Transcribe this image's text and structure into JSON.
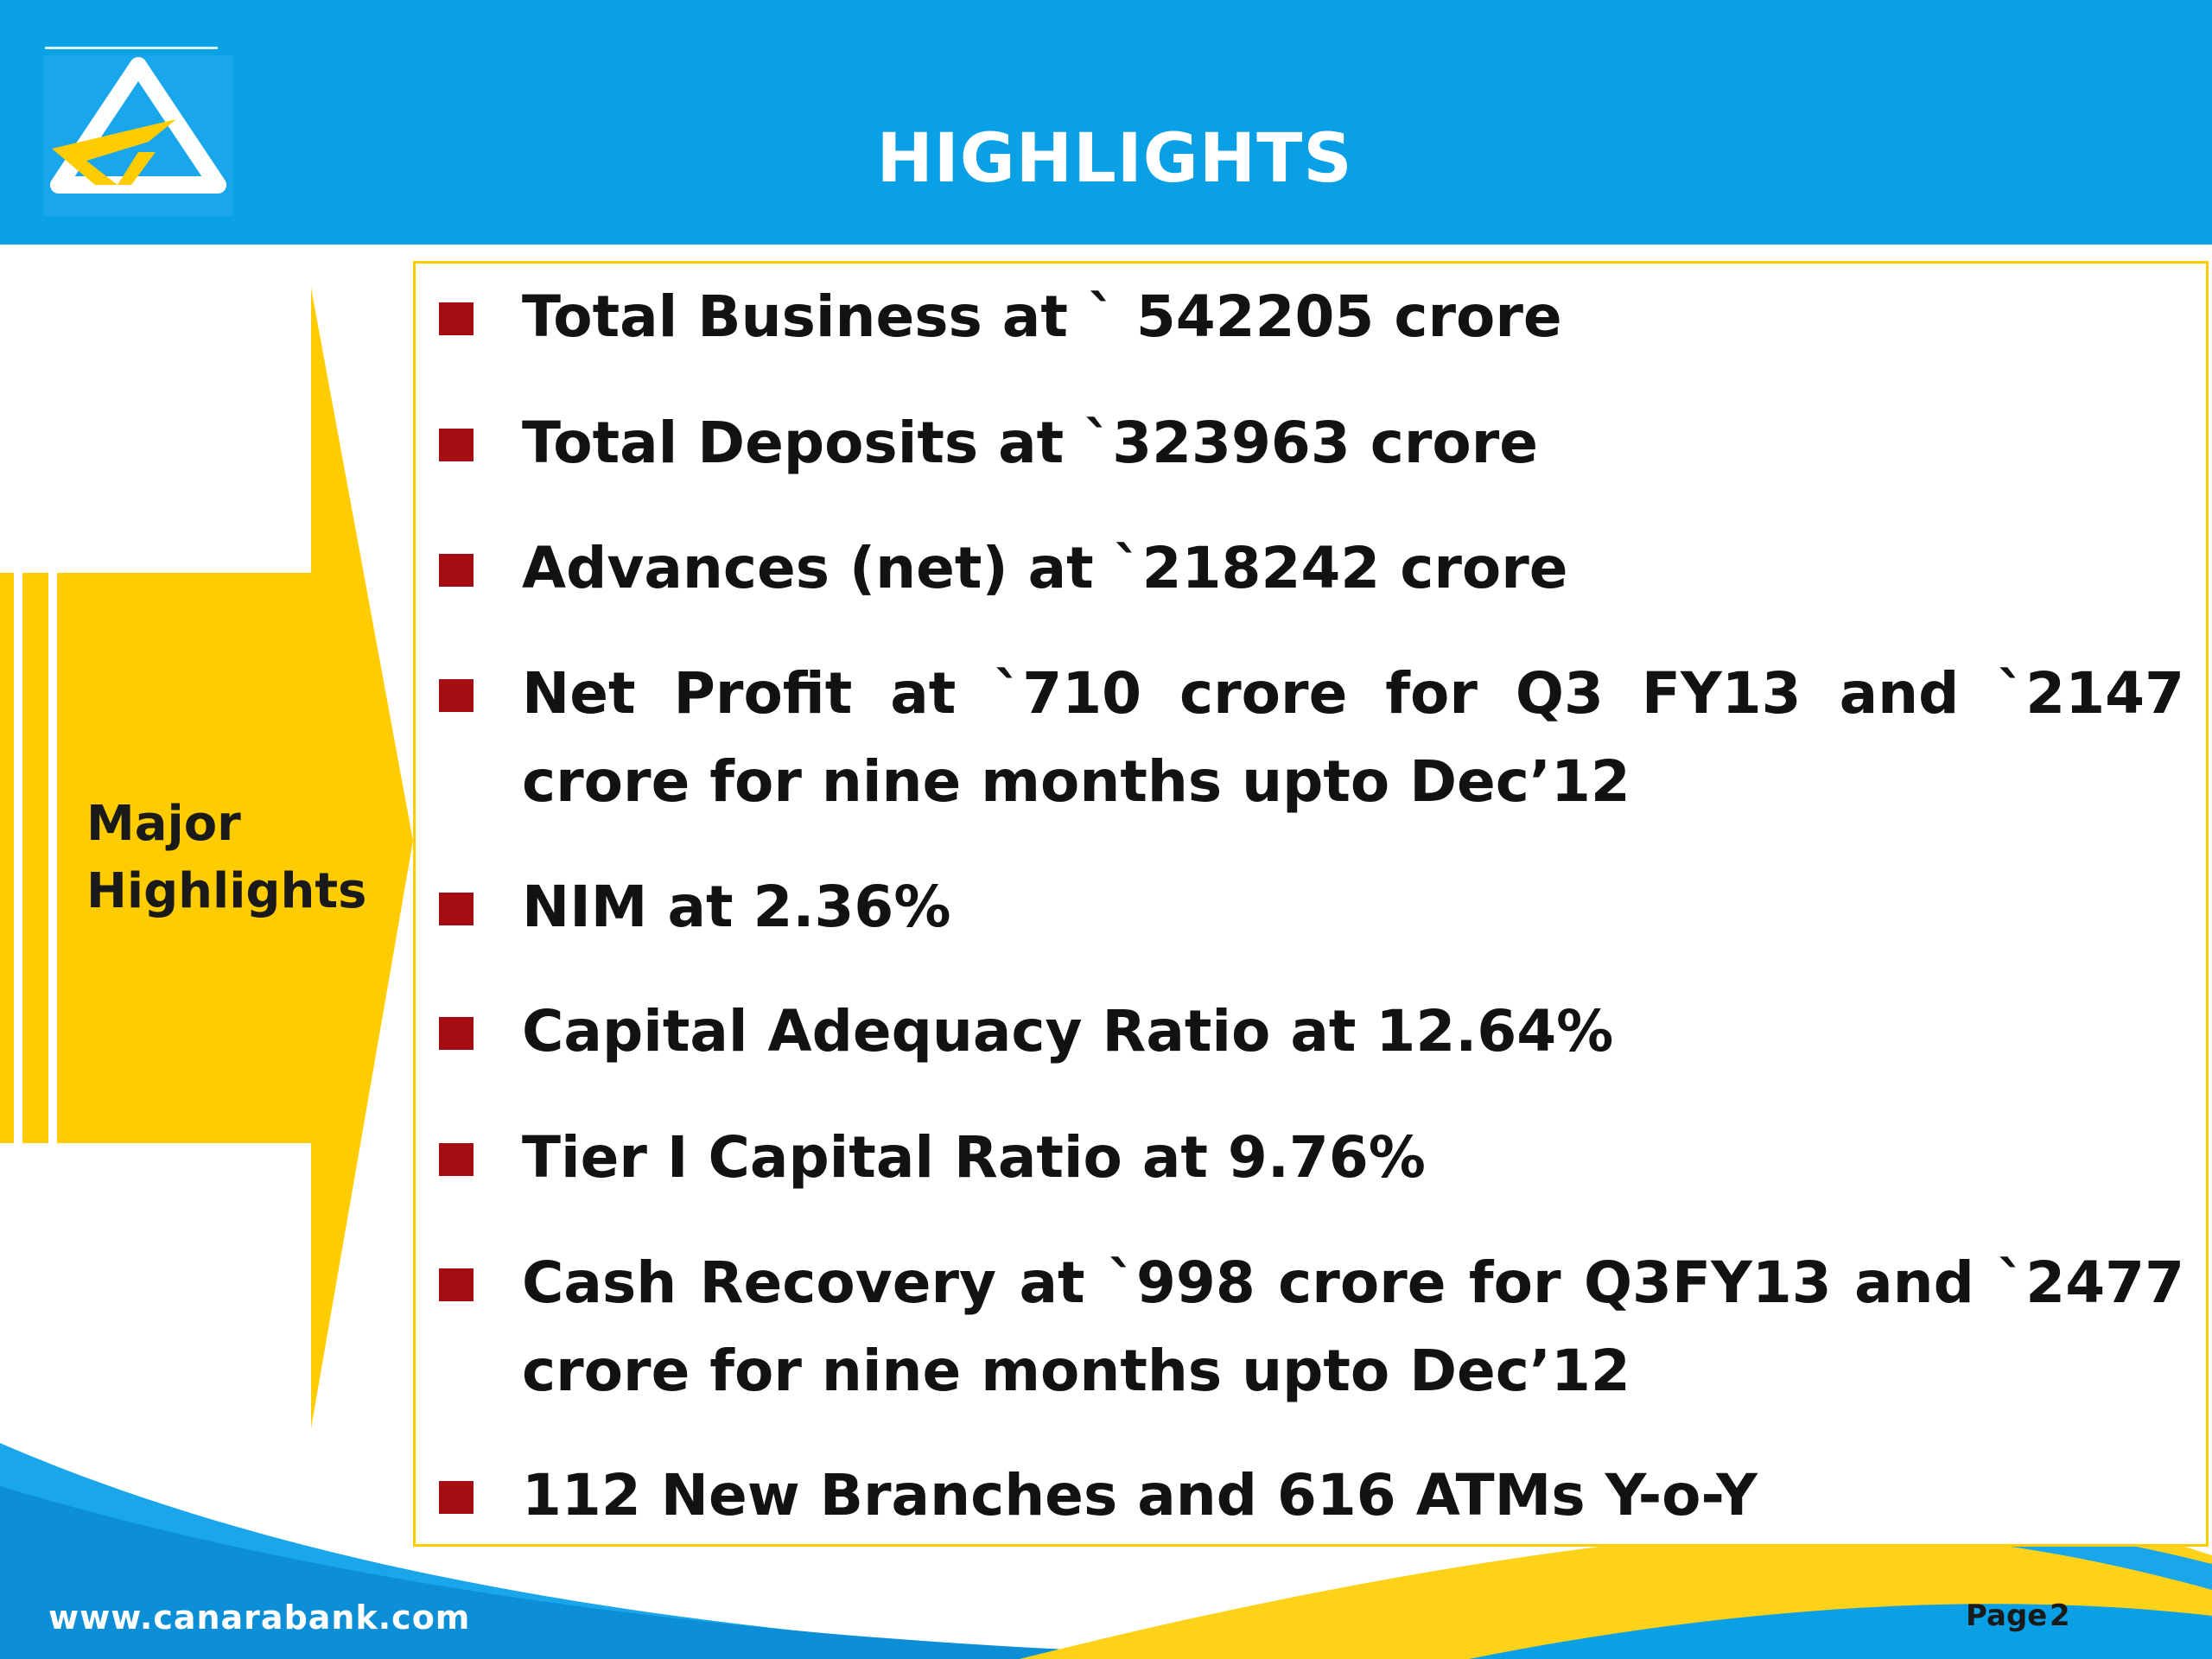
{
  "header": {
    "title": "HIGHLIGHTS",
    "color": "#0aa0e6"
  },
  "logo": {
    "icon": "canara-bank-logo-icon"
  },
  "side": {
    "label_line1": "Major",
    "label_line2": "Highlights",
    "arrow_color": "#ffcc00"
  },
  "bullets": [
    {
      "text": "Total Business at ` 542205 crore"
    },
    {
      "text": "Total Deposits at `323963 crore"
    },
    {
      "text": "Advances (net) at `218242 crore"
    },
    {
      "text": "Net Profit at `710 crore for Q3 FY13 and `2147 crore for nine months upto Dec’12"
    },
    {
      "text": "NIM at 2.36%"
    },
    {
      "text": "Capital Adequacy Ratio at 12.64%"
    },
    {
      "text": "Tier I Capital Ratio  at 9.76%"
    },
    {
      "text": "Cash Recovery at `998 crore for Q3FY13 and `2477 crore for nine months upto Dec’12"
    },
    {
      "text": "112 New Branches and 616 ATMs Y-o-Y"
    }
  ],
  "bullet_marker_color": "#a50d12",
  "footer": {
    "url": "www.canarabank.com",
    "page_label": "Page",
    "page_number": "2"
  }
}
